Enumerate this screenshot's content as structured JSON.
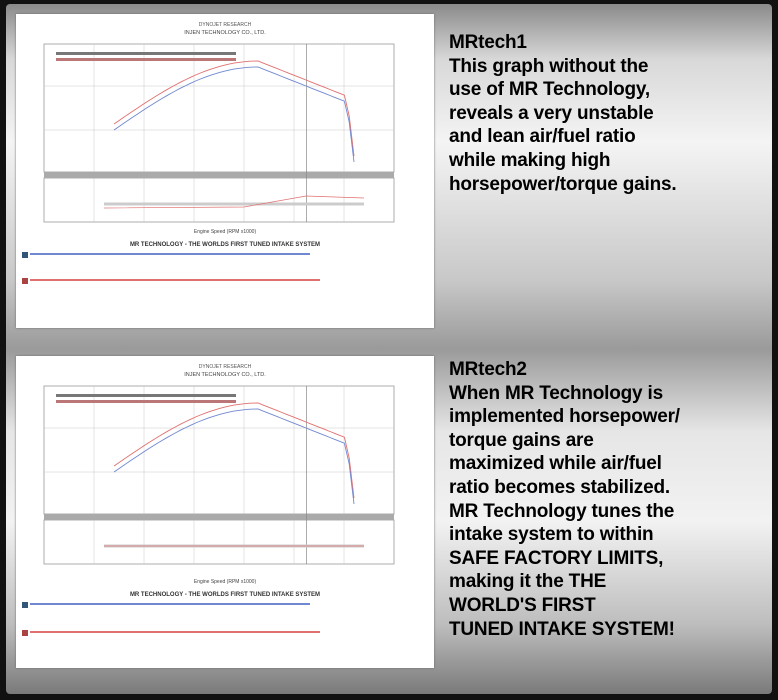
{
  "sections": [
    {
      "heading": "MRtech1",
      "lines": [
        "This graph without the",
        "use of MR Technology,",
        "reveals a very unstable",
        "and lean air/fuel ratio",
        "while making high",
        "horsepower/torque gains."
      ],
      "chart": {
        "header": "DYNOJET RESEARCH",
        "company": "INJEN TECHNOLOGY CO., LTD.",
        "xlabel": "Engine Speed (RPM x1000)",
        "footer": "MR TECHNOLOGY - THE WORLDS FIRST TUNED INTAKE SYSTEM",
        "afr_stable": false
      }
    },
    {
      "heading": "MRtech2",
      "lines": [
        "When MR Technology is",
        "implemented horsepower/",
        "torque gains are",
        "maximized while air/fuel",
        "ratio becomes stabilized.",
        "MR Technology tunes the",
        "intake system to within",
        "SAFE FACTORY LIMITS,",
        "making it the THE",
        "WORLD'S FIRST",
        "TUNED INTAKE SYSTEM!"
      ],
      "chart": {
        "header": "DYNOJET RESEARCH",
        "company": "INJEN TECHNOLOGY CO., LTD.",
        "xlabel": "Engine Speed (RPM x1000)",
        "footer": "MR TECHNOLOGY - THE WORLDS FIRST TUNED INTAKE SYSTEM",
        "afr_stable": true
      }
    }
  ],
  "colors": {
    "series_a": "#e07070",
    "series_b": "#7088d0",
    "grid": "#c8c8c8"
  }
}
